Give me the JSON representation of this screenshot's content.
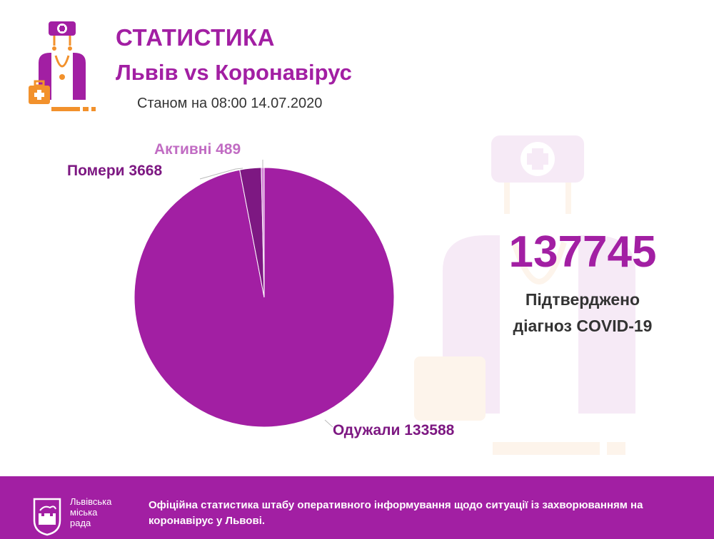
{
  "header": {
    "title": "СТАТИСТИКА",
    "subtitle": "Львів vs Коронавірус",
    "date_line": "Станом на 08:00 14.07.2020"
  },
  "summary": {
    "total": "137745",
    "caption_line1": "Підтверджено",
    "caption_line2": "діагноз COVID-19"
  },
  "chart_data": {
    "type": "pie",
    "slices": [
      {
        "label": "Одужали 133588",
        "value": 133588,
        "color": "#a21fa3"
      },
      {
        "label": "Помери 3668",
        "value": 3668,
        "color": "#7d1882"
      },
      {
        "label": "Активні 489",
        "value": 489,
        "color": "#d27fd4"
      }
    ],
    "label_colors": [
      "#7d1882",
      "#7d1882",
      "#c16cc3"
    ]
  },
  "footer": {
    "city_lines": [
      "Львівська",
      "міська",
      "рада"
    ],
    "text": "Офіційна статистика штабу оперативного інформування щодо ситуації із захворюванням на коронавірус у Львові."
  },
  "colors": {
    "accent": "#a21fa3",
    "orange": "#f2912c",
    "text_dark": "#333333"
  }
}
